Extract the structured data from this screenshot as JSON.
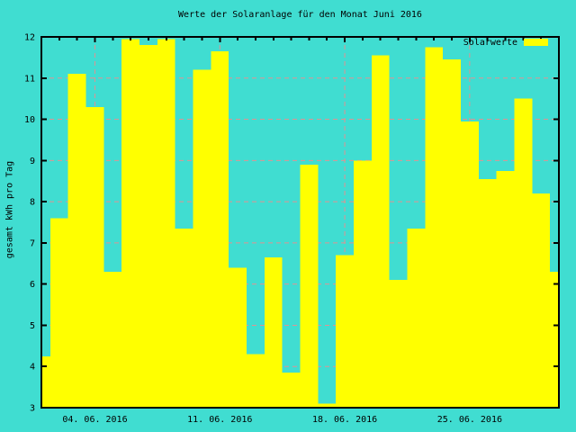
{
  "title": "Werte der Solaranlage für den Monat Juni 2016",
  "legend": {
    "label": "Solarwerte"
  },
  "y_axis": {
    "label": "gesamt kWh pro Tag",
    "min": 3,
    "max": 12,
    "tick_labels": [
      "3",
      "4",
      "5",
      "6",
      "7",
      "8",
      "9",
      "10",
      "11",
      "12"
    ]
  },
  "x_axis": {
    "days_in_month": 30,
    "major_ticks": [
      {
        "day": 4,
        "label": "04. 06. 2016"
      },
      {
        "day": 11,
        "label": "11. 06. 2016"
      },
      {
        "day": 18,
        "label": "18. 06. 2016"
      },
      {
        "day": 25,
        "label": "25. 06. 2016"
      }
    ]
  },
  "colors": {
    "background": "#40ddd1",
    "bar": "#ffff00",
    "grid": "#dd9494",
    "axis": "#000000",
    "text": "#000000"
  },
  "chart_data": {
    "type": "bar",
    "title": "Werte der Solaranlage für den Monat Juni 2016",
    "xlabel": "",
    "ylabel": "gesamt kWh pro Tag",
    "x_unit": "Tag im Juni 2016",
    "categories": [
      1,
      2,
      3,
      4,
      5,
      6,
      7,
      8,
      9,
      10,
      11,
      12,
      13,
      14,
      15,
      16,
      17,
      18,
      19,
      20,
      21,
      22,
      23,
      24,
      25,
      26,
      27,
      28,
      29,
      30
    ],
    "values": [
      4.25,
      7.6,
      11.1,
      10.3,
      6.3,
      11.95,
      11.8,
      11.95,
      7.35,
      11.2,
      11.65,
      6.4,
      4.3,
      6.65,
      3.85,
      8.9,
      3.1,
      6.7,
      9.0,
      11.55,
      6.1,
      7.35,
      11.75,
      11.45,
      9.95,
      8.55,
      8.75,
      10.5,
      8.2,
      6.3
    ],
    "ylim": [
      3,
      12
    ],
    "xlim_days": [
      1,
      30
    ],
    "legend_entries": [
      "Solarwerte"
    ],
    "legend_position": "top-right",
    "grid": "dashed horizontal lines at each kWh unit, dashed vertical lines at major date ticks",
    "bar_style": "contiguous yellow boxes centered on each day; first and last bars half-clipped at plot borders"
  }
}
